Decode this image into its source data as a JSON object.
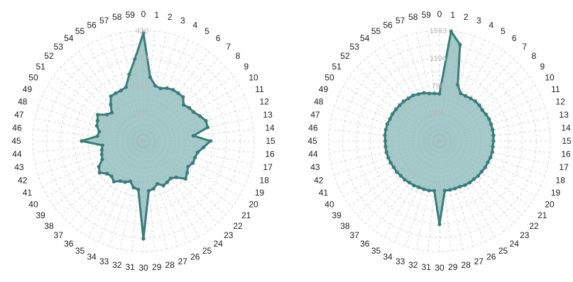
{
  "chart_data": [
    {
      "type": "radar",
      "categories": [
        "0",
        "1",
        "2",
        "3",
        "4",
        "5",
        "6",
        "7",
        "8",
        "9",
        "10",
        "11",
        "12",
        "13",
        "14",
        "15",
        "16",
        "17",
        "18",
        "19",
        "20",
        "21",
        "22",
        "23",
        "24",
        "25",
        "26",
        "27",
        "28",
        "29",
        "30",
        "31",
        "32",
        "33",
        "34",
        "35",
        "36",
        "37",
        "38",
        "39",
        "40",
        "41",
        "42",
        "43",
        "44",
        "45",
        "46",
        "47",
        "48",
        "49",
        "50",
        "51",
        "52",
        "53",
        "54",
        "55",
        "56",
        "57",
        "58",
        "59"
      ],
      "radial_ticks": [
        "0",
        "107",
        "215",
        "322",
        "430"
      ],
      "rmax": 430,
      "series": [
        {
          "values": [
            420,
            250,
            220,
            215,
            225,
            230,
            230,
            230,
            210,
            220,
            225,
            240,
            255,
            255,
            195,
            260,
            235,
            215,
            210,
            210,
            200,
            210,
            220,
            190,
            180,
            185,
            190,
            175,
            190,
            195,
            380,
            190,
            185,
            165,
            175,
            180,
            195,
            185,
            190,
            210,
            200,
            175,
            170,
            165,
            160,
            240,
            180,
            175,
            190,
            195,
            205,
            175,
            165,
            190,
            215,
            215,
            215,
            220,
            265,
            320
          ]
        }
      ],
      "color": "#3a7d7a",
      "fill_color": "#8fbcbb",
      "grid": true
    },
    {
      "type": "radar",
      "categories": [
        "0",
        "1",
        "2",
        "3",
        "4",
        "5",
        "6",
        "7",
        "8",
        "9",
        "10",
        "11",
        "12",
        "13",
        "14",
        "15",
        "16",
        "17",
        "18",
        "19",
        "20",
        "21",
        "22",
        "23",
        "24",
        "25",
        "26",
        "27",
        "28",
        "29",
        "30",
        "31",
        "32",
        "33",
        "34",
        "35",
        "36",
        "37",
        "38",
        "39",
        "40",
        "41",
        "42",
        "43",
        "44",
        "45",
        "46",
        "47",
        "48",
        "49",
        "50",
        "51",
        "52",
        "53",
        "54",
        "55",
        "56",
        "57",
        "58",
        "59"
      ],
      "radial_ticks": [
        "0",
        "398",
        "796",
        "1194",
        "1593"
      ],
      "rmax": 1593,
      "series": [
        {
          "values": [
            680,
            1590,
            1420,
            850,
            750,
            750,
            760,
            770,
            770,
            760,
            770,
            780,
            780,
            780,
            780,
            775,
            770,
            775,
            770,
            760,
            760,
            750,
            750,
            740,
            740,
            735,
            720,
            720,
            720,
            720,
            1200,
            720,
            730,
            730,
            730,
            740,
            740,
            750,
            750,
            760,
            760,
            770,
            775,
            780,
            780,
            780,
            790,
            790,
            790,
            780,
            780,
            775,
            770,
            770,
            760,
            760,
            740,
            730,
            700,
            690
          ]
        }
      ],
      "color": "#3a7d7a",
      "fill_color": "#8fbcbb",
      "grid": true
    }
  ]
}
